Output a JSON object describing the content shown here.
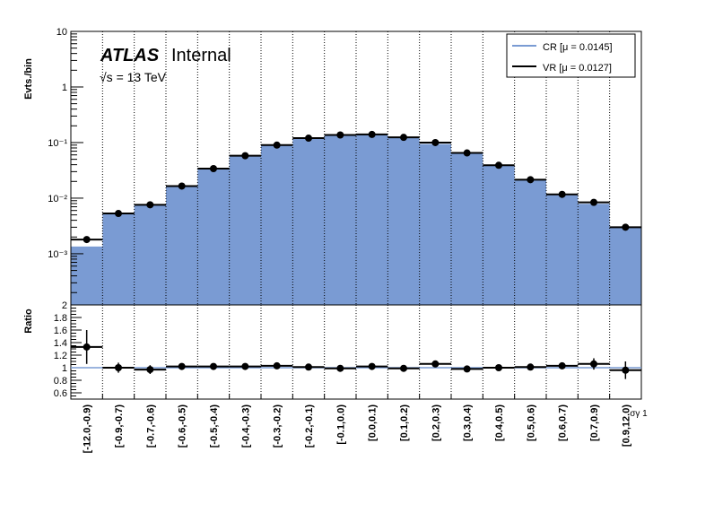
{
  "chart_data": [
    {
      "type": "bar",
      "panel": "main",
      "ylabel": "Evts./bin",
      "yscale": "log",
      "ylim": [
        0.00012,
        10
      ],
      "y_tick_labels": [
        "10",
        "1",
        "10⁻¹",
        "10⁻²",
        "10⁻³"
      ],
      "atlas_label": "ATLAS",
      "atlas_status": "Internal",
      "energy_label": "√s = 13 TeV",
      "categories": [
        "[-12.0,-0.9)",
        "[-0.9,-0.7)",
        "[-0.7,-0.6)",
        "[-0.6,-0.5)",
        "[-0.5,-0.4)",
        "[-0.4,-0.3)",
        "[-0.3,-0.2)",
        "[-0.2,-0.1)",
        "[-0.1,0.0)",
        "[0.0,0.1)",
        "[0.1,0.2)",
        "[0.2,0.3)",
        "[0.3,0.4)",
        "[0.4,0.5)",
        "[0.5,0.6)",
        "[0.6,0.7)",
        "[0.7,0.9)",
        "[0.9,12.0)"
      ],
      "series": [
        {
          "name": "CR [μ = 0.0145]",
          "style": "filled",
          "color": "#7a9bd3",
          "values": [
            0.00135,
            0.0053,
            0.0078,
            0.0162,
            0.0335,
            0.057,
            0.088,
            0.118,
            0.138,
            0.138,
            0.124,
            0.094,
            0.066,
            0.039,
            0.0215,
            0.0113,
            0.0079,
            0.0031
          ]
        },
        {
          "name": "VR [μ = 0.0127]",
          "style": "points",
          "color": "#000000",
          "values": [
            0.0018,
            0.0053,
            0.0076,
            0.0165,
            0.034,
            0.058,
            0.09,
            0.12,
            0.137,
            0.14,
            0.124,
            0.1,
            0.065,
            0.039,
            0.0215,
            0.0117,
            0.0084,
            0.003
          ]
        }
      ],
      "legend_position": "top-right"
    },
    {
      "type": "scatter",
      "panel": "ratio",
      "ylabel": "Ratio",
      "ylim": [
        0.5,
        2.0
      ],
      "y_tick_labels": [
        "2",
        "1.8",
        "1.6",
        "1.4",
        "1.2",
        "1",
        "0.8",
        "0.6"
      ],
      "xlabel": "σγ 1",
      "categories": [
        "[-12.0,-0.9)",
        "[-0.9,-0.7)",
        "[-0.7,-0.6)",
        "[-0.6,-0.5)",
        "[-0.5,-0.4)",
        "[-0.4,-0.3)",
        "[-0.3,-0.2)",
        "[-0.2,-0.1)",
        "[-0.1,0.0)",
        "[0.0,0.1)",
        "[0.1,0.2)",
        "[0.2,0.3)",
        "[0.3,0.4)",
        "[0.4,0.5)",
        "[0.5,0.6)",
        "[0.6,0.7)",
        "[0.7,0.9)",
        "[0.9,12.0)"
      ],
      "values": [
        1.33,
        1.0,
        0.97,
        1.02,
        1.02,
        1.02,
        1.03,
        1.01,
        0.99,
        1.02,
        0.99,
        1.06,
        0.98,
        1.0,
        1.01,
        1.03,
        1.06,
        0.96
      ],
      "errors": [
        0.27,
        0.08,
        0.07,
        0.04,
        0.03,
        0.03,
        0.03,
        0.03,
        0.03,
        0.03,
        0.03,
        0.04,
        0.03,
        0.04,
        0.04,
        0.05,
        0.09,
        0.14
      ]
    }
  ]
}
